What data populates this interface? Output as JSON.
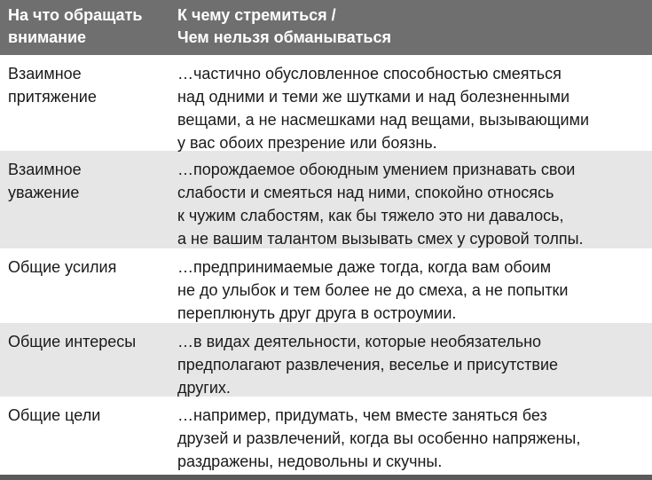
{
  "header": {
    "col1": [
      "На что обращать",
      "внимание"
    ],
    "col2": [
      "К чему стремиться /",
      "Чем нельзя обманываться"
    ]
  },
  "rows": [
    {
      "label": [
        "Взаимное",
        "притяжение"
      ],
      "text": [
        "…частично обусловленное способностью смеяться",
        "над одними и теми же шутками и над болезненными",
        "вещами, а не насмешками над вещами, вызывающими",
        "у вас обоих презрение или боязнь."
      ]
    },
    {
      "label": [
        "Взаимное",
        "уважение"
      ],
      "text": [
        "…порождаемое обоюдным умением признавать свои",
        "слабости и смеяться над ними, спокойно относясь",
        "к чужим слабостям, как бы тяжело это ни давалось,",
        "а не вашим талантом вызывать смех у суровой толпы."
      ]
    },
    {
      "label": [
        "Общие усилия"
      ],
      "text": [
        "…предпринимаемые даже тогда, когда вам обоим",
        "не до улыбок и тем более не до смеха, а не попытки",
        "переплюнуть друг друга в остроумии."
      ]
    },
    {
      "label": [
        "Общие интересы"
      ],
      "text": [
        "…в видах деятельности, которые необязательно",
        "предполагают развлечения, веселье и присутствие",
        "других."
      ]
    },
    {
      "label": [
        "Общие цели"
      ],
      "text": [
        "…например, придумать, чем вместе заняться без",
        "друзей и развлечений, когда вы особенно напряжены,",
        "раздражены, недовольны и скучны."
      ]
    }
  ],
  "colors": {
    "header_bg": "#6f6f6f",
    "alt_row_bg": "#e6e6e6",
    "bottom_rule": "#5a5a5a"
  }
}
